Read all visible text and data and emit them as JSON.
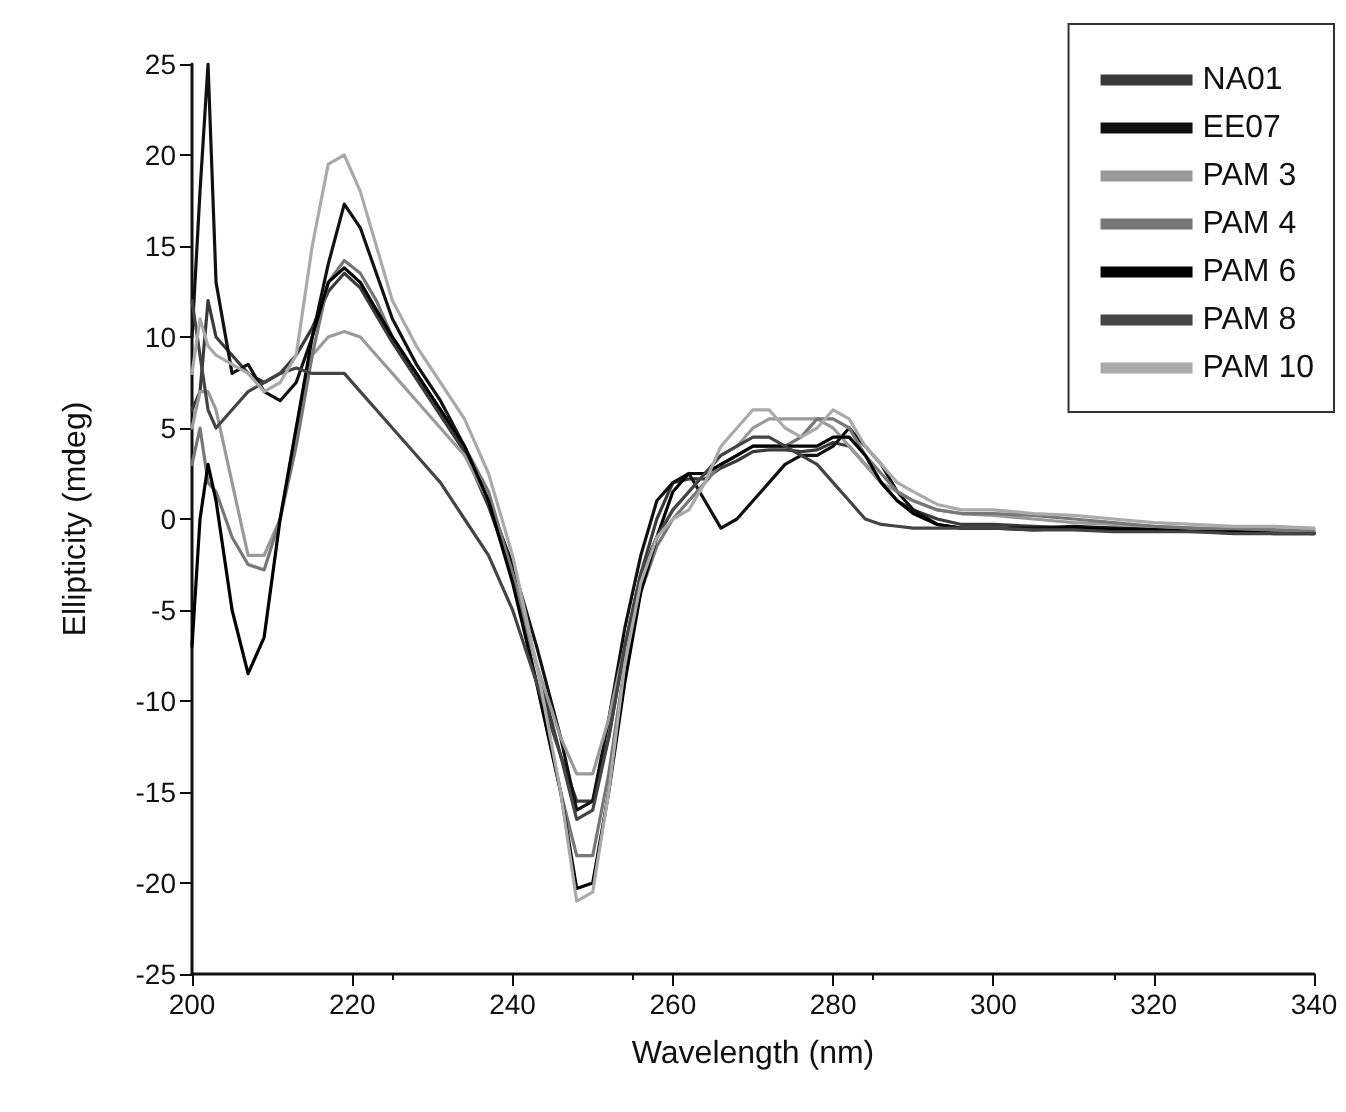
{
  "chart_data": {
    "type": "line",
    "xlabel": "Wavelength (nm)",
    "ylabel": "Ellipticity (mdeg)",
    "x": [
      200,
      201,
      202,
      203,
      205,
      207,
      209,
      211,
      213,
      215,
      217,
      219,
      221,
      223,
      225,
      228,
      231,
      234,
      237,
      240,
      243,
      246,
      248,
      250,
      252,
      254,
      256,
      258,
      260,
      262,
      264,
      266,
      268,
      270,
      272,
      274,
      276,
      278,
      280,
      282,
      284,
      286,
      288,
      290,
      293,
      296,
      300,
      305,
      310,
      315,
      320,
      325,
      330,
      335,
      340
    ],
    "xlim": [
      200,
      340
    ],
    "xticks": [
      200,
      220,
      240,
      260,
      280,
      300,
      320,
      340
    ],
    "ylim": [
      -25,
      25
    ],
    "yticks": [
      -25,
      -20,
      -15,
      -10,
      -5,
      0,
      5,
      10,
      15,
      20,
      25
    ],
    "grid": false,
    "legend": "top right",
    "marker": "none",
    "line_style": "solid",
    "series": [
      {
        "name": "NA01",
        "color": "#3a3a3a",
        "values": [
          6,
          7,
          12,
          10,
          9,
          8,
          7.5,
          8,
          9,
          10.5,
          12.5,
          13.5,
          12.7,
          11.2,
          9.7,
          7.7,
          5.7,
          3.7,
          0.7,
          -3,
          -8,
          -13,
          -15.5,
          -15.5,
          -12,
          -7,
          -3,
          0,
          2,
          2.2,
          2.2,
          2.8,
          3.2,
          3.7,
          3.8,
          3.8,
          3.7,
          3.8,
          4.2,
          4,
          3,
          2,
          1,
          0.5,
          0,
          -0.3,
          -0.3,
          -0.4,
          -0.5,
          -0.5,
          -0.5,
          -0.6,
          -0.6,
          -0.7,
          -0.7
        ]
      },
      {
        "name": "EE07",
        "color": "#111111",
        "values": [
          10,
          18,
          25,
          13,
          8,
          8.5,
          7,
          6.5,
          7.5,
          10,
          14,
          17.3,
          16,
          13.5,
          11,
          8.5,
          6.5,
          4,
          1,
          -2.5,
          -7,
          -12,
          -16,
          -15.5,
          -11,
          -6,
          -2,
          1,
          2,
          2.5,
          1,
          -0.5,
          0,
          1,
          2,
          3,
          3.5,
          3.5,
          4,
          5,
          4,
          3,
          1.5,
          0.5,
          -0.3,
          -0.5,
          -0.5,
          -0.5,
          -0.4,
          -0.5,
          -0.6,
          -0.6,
          -0.7,
          -0.7,
          -0.8
        ]
      },
      {
        "name": "PAM 3",
        "color": "#9a9a9a",
        "values": [
          5,
          7,
          7,
          6,
          2,
          -2,
          -2,
          0,
          5,
          9,
          10,
          10.3,
          10,
          9,
          8,
          6.5,
          5,
          3.5,
          1,
          -3,
          -8,
          -12,
          -14,
          -14,
          -11,
          -7,
          -3,
          -1,
          0.5,
          1.5,
          2.5,
          3.5,
          4,
          5,
          5.5,
          5.5,
          5.5,
          5.5,
          5,
          4,
          3,
          2,
          1.5,
          1,
          0.5,
          0.3,
          0.2,
          0,
          -0.2,
          -0.3,
          -0.4,
          -0.5,
          -0.5,
          -0.6,
          -0.6
        ]
      },
      {
        "name": "PAM 4",
        "color": "#777777",
        "values": [
          3,
          5,
          2,
          1.5,
          -1,
          -2.5,
          -2.8,
          0,
          4,
          9,
          13,
          14.2,
          13.5,
          12,
          10,
          8,
          6,
          4,
          1.5,
          -3,
          -9,
          -15,
          -18.5,
          -18.5,
          -14,
          -8,
          -4,
          -1.5,
          0,
          1,
          2,
          3,
          3.5,
          4,
          4,
          4,
          4.5,
          5.5,
          5.5,
          5,
          3.5,
          2.5,
          1.5,
          1,
          0.5,
          0.3,
          0.3,
          0.2,
          0,
          -0.2,
          -0.4,
          -0.5,
          -0.6,
          -0.6,
          -0.7
        ]
      },
      {
        "name": "PAM 6",
        "color": "#000000",
        "values": [
          -7,
          0,
          3,
          1,
          -5,
          -8.5,
          -6.5,
          0,
          5,
          10,
          13,
          13.8,
          13,
          11.5,
          10,
          8,
          6,
          4,
          1,
          -3.5,
          -9,
          -15,
          -20.3,
          -20,
          -15,
          -9,
          -4,
          -1,
          1.5,
          2.5,
          2.5,
          3,
          3.5,
          4,
          4,
          4,
          4,
          4,
          4.5,
          4.5,
          3.5,
          2,
          1,
          0.3,
          -0.3,
          -0.5,
          -0.5,
          -0.6,
          -0.5,
          -0.6,
          -0.6,
          -0.7,
          -0.7,
          -0.8,
          -0.8
        ]
      },
      {
        "name": "PAM 8",
        "color": "#444444",
        "values": [
          12,
          9,
          6,
          5,
          6,
          7,
          7.5,
          8,
          8.3,
          8,
          8,
          8,
          7,
          6,
          5,
          3.5,
          2,
          0,
          -2,
          -5,
          -9,
          -13,
          -16.5,
          -16,
          -12,
          -7,
          -3,
          -1,
          0.5,
          1.5,
          2.5,
          3.5,
          4,
          4.5,
          4.5,
          4,
          3.5,
          3,
          2,
          1,
          0,
          -0.3,
          -0.4,
          -0.5,
          -0.5,
          -0.5,
          -0.5,
          -0.6,
          -0.6,
          -0.7,
          -0.7,
          -0.7,
          -0.8,
          -0.8,
          -0.8
        ]
      },
      {
        "name": "PAM 10",
        "color": "#aaaaaa",
        "values": [
          8,
          11,
          9.5,
          9,
          8.5,
          8,
          7,
          7.5,
          9,
          15,
          19.5,
          20,
          18,
          15,
          12,
          9.5,
          7.5,
          5.5,
          2.5,
          -2,
          -8,
          -15,
          -21,
          -20.5,
          -15,
          -8,
          -3.5,
          -1,
          0,
          0.5,
          2,
          4,
          5,
          6,
          6,
          5,
          4.5,
          5,
          6,
          5.5,
          4,
          3,
          2,
          1.5,
          0.8,
          0.5,
          0.5,
          0.3,
          0.2,
          0,
          -0.2,
          -0.3,
          -0.4,
          -0.4,
          -0.5
        ]
      }
    ]
  }
}
